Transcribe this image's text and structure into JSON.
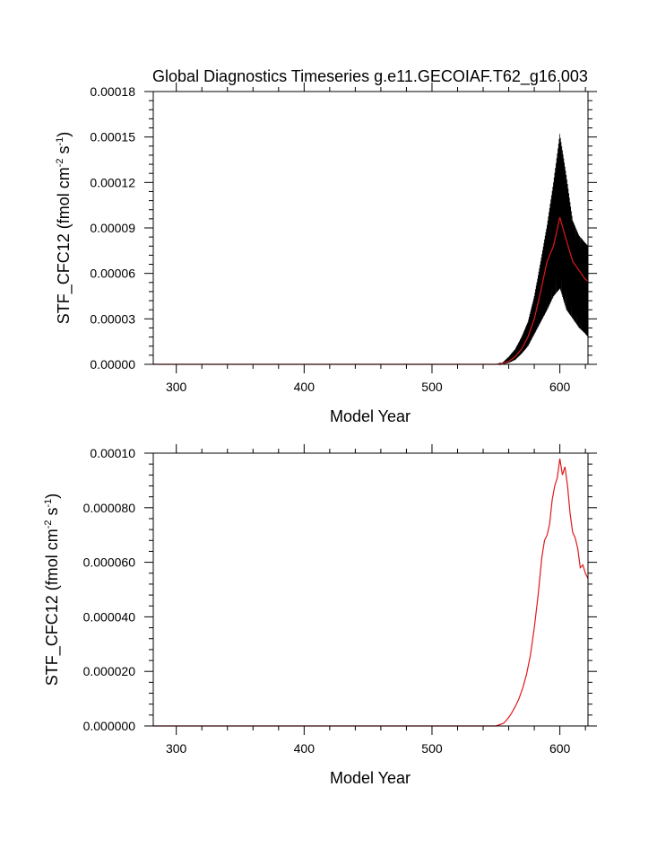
{
  "figure": {
    "title": "Global Diagnostics Timeseries g.e11.GECOIAF.T62_g16.003"
  },
  "chart_data": [
    {
      "type": "line",
      "xlabel": "Model Year",
      "ylabel": {
        "base": "STF_CFC12 (fmol cm",
        "sup1": "-2",
        "mid": " s",
        "sup2": "-1",
        "end": ")"
      },
      "xlim": [
        282,
        622
      ],
      "ylim": [
        0,
        0.00018
      ],
      "x_ticks": [
        300,
        400,
        500,
        600
      ],
      "x_tick_labels": [
        "300",
        "400",
        "500",
        "600"
      ],
      "y_ticks": [
        0,
        3e-05,
        6e-05,
        9e-05,
        0.00012,
        0.00015,
        0.00018
      ],
      "y_tick_labels": [
        "0.00000",
        "0.00003",
        "0.00006",
        "0.00009",
        "0.00012",
        "0.00015",
        "0.00018"
      ],
      "grid": false,
      "series": [
        {
          "color": "#000000",
          "style": "monthly envelope (min/max band)",
          "x": [
            550,
            555,
            560,
            565,
            570,
            575,
            580,
            585,
            590,
            595,
            600,
            605,
            610,
            615,
            620,
            622
          ],
          "low": [
            0,
            0,
            1e-06,
            3e-06,
            7e-06,
            1.2e-05,
            2e-05,
            2.8e-05,
            3.6e-05,
            4.5e-05,
            5e-05,
            3.6e-05,
            3e-05,
            2.4e-05,
            2e-05,
            1.8e-05
          ],
          "high": [
            0,
            1e-06,
            5e-06,
            1e-05,
            1.8e-05,
            2.8e-05,
            4.5e-05,
            6.8e-05,
            9.2e-05,
            0.00012,
            0.000152,
            0.000125,
            9.5e-05,
            8.5e-05,
            8e-05,
            7.8e-05
          ]
        },
        {
          "color": "#e0191b",
          "style": "annual mean",
          "x": [
            550,
            555,
            560,
            565,
            570,
            575,
            580,
            585,
            590,
            595,
            600,
            605,
            610,
            615,
            620,
            622
          ],
          "values": [
            0,
            5e-07,
            2e-06,
            5e-06,
            1e-05,
            1.8e-05,
            3e-05,
            4.8e-05,
            6.8e-05,
            7.8e-05,
            9.7e-05,
            8.2e-05,
            6.8e-05,
            6.2e-05,
            5.6e-05,
            5.5e-05
          ]
        }
      ]
    },
    {
      "type": "line",
      "xlabel": "Model Year",
      "ylabel": {
        "base": "STF_CFC12 (fmol cm",
        "sup1": "-2",
        "mid": " s",
        "sup2": "-1",
        "end": ")"
      },
      "xlim": [
        282,
        622
      ],
      "ylim": [
        0,
        0.0001
      ],
      "x_ticks": [
        300,
        400,
        500,
        600
      ],
      "x_tick_labels": [
        "300",
        "400",
        "500",
        "600"
      ],
      "y_ticks": [
        0,
        2e-05,
        4e-05,
        6e-05,
        8e-05,
        0.0001
      ],
      "y_tick_labels": [
        "0.000000",
        "0.000020",
        "0.000040",
        "0.000060",
        "0.000080",
        "0.00010"
      ],
      "grid": false,
      "series": [
        {
          "color": "#e0191b",
          "style": "annual mean",
          "x": [
            550,
            553,
            556,
            559,
            562,
            565,
            568,
            571,
            574,
            577,
            580,
            583,
            586,
            588,
            590,
            592,
            594,
            596,
            598,
            600,
            602,
            604,
            606,
            608,
            610,
            612,
            614,
            616,
            618,
            620,
            622
          ],
          "values": [
            0,
            5e-07,
            1e-06,
            2.5e-06,
            4.5e-06,
            7e-06,
            1e-05,
            1.4e-05,
            1.9e-05,
            2.6e-05,
            3.6e-05,
            4.8e-05,
            6.2e-05,
            6.8e-05,
            7e-05,
            7.4e-05,
            8.3e-05,
            8.8e-05,
            9.1e-05,
            9.8e-05,
            9.2e-05,
            9.5e-05,
            8.8e-05,
            7.8e-05,
            7.1e-05,
            6.9e-05,
            6.5e-05,
            5.8e-05,
            5.9e-05,
            5.6e-05,
            5.4e-05
          ]
        }
      ]
    }
  ]
}
